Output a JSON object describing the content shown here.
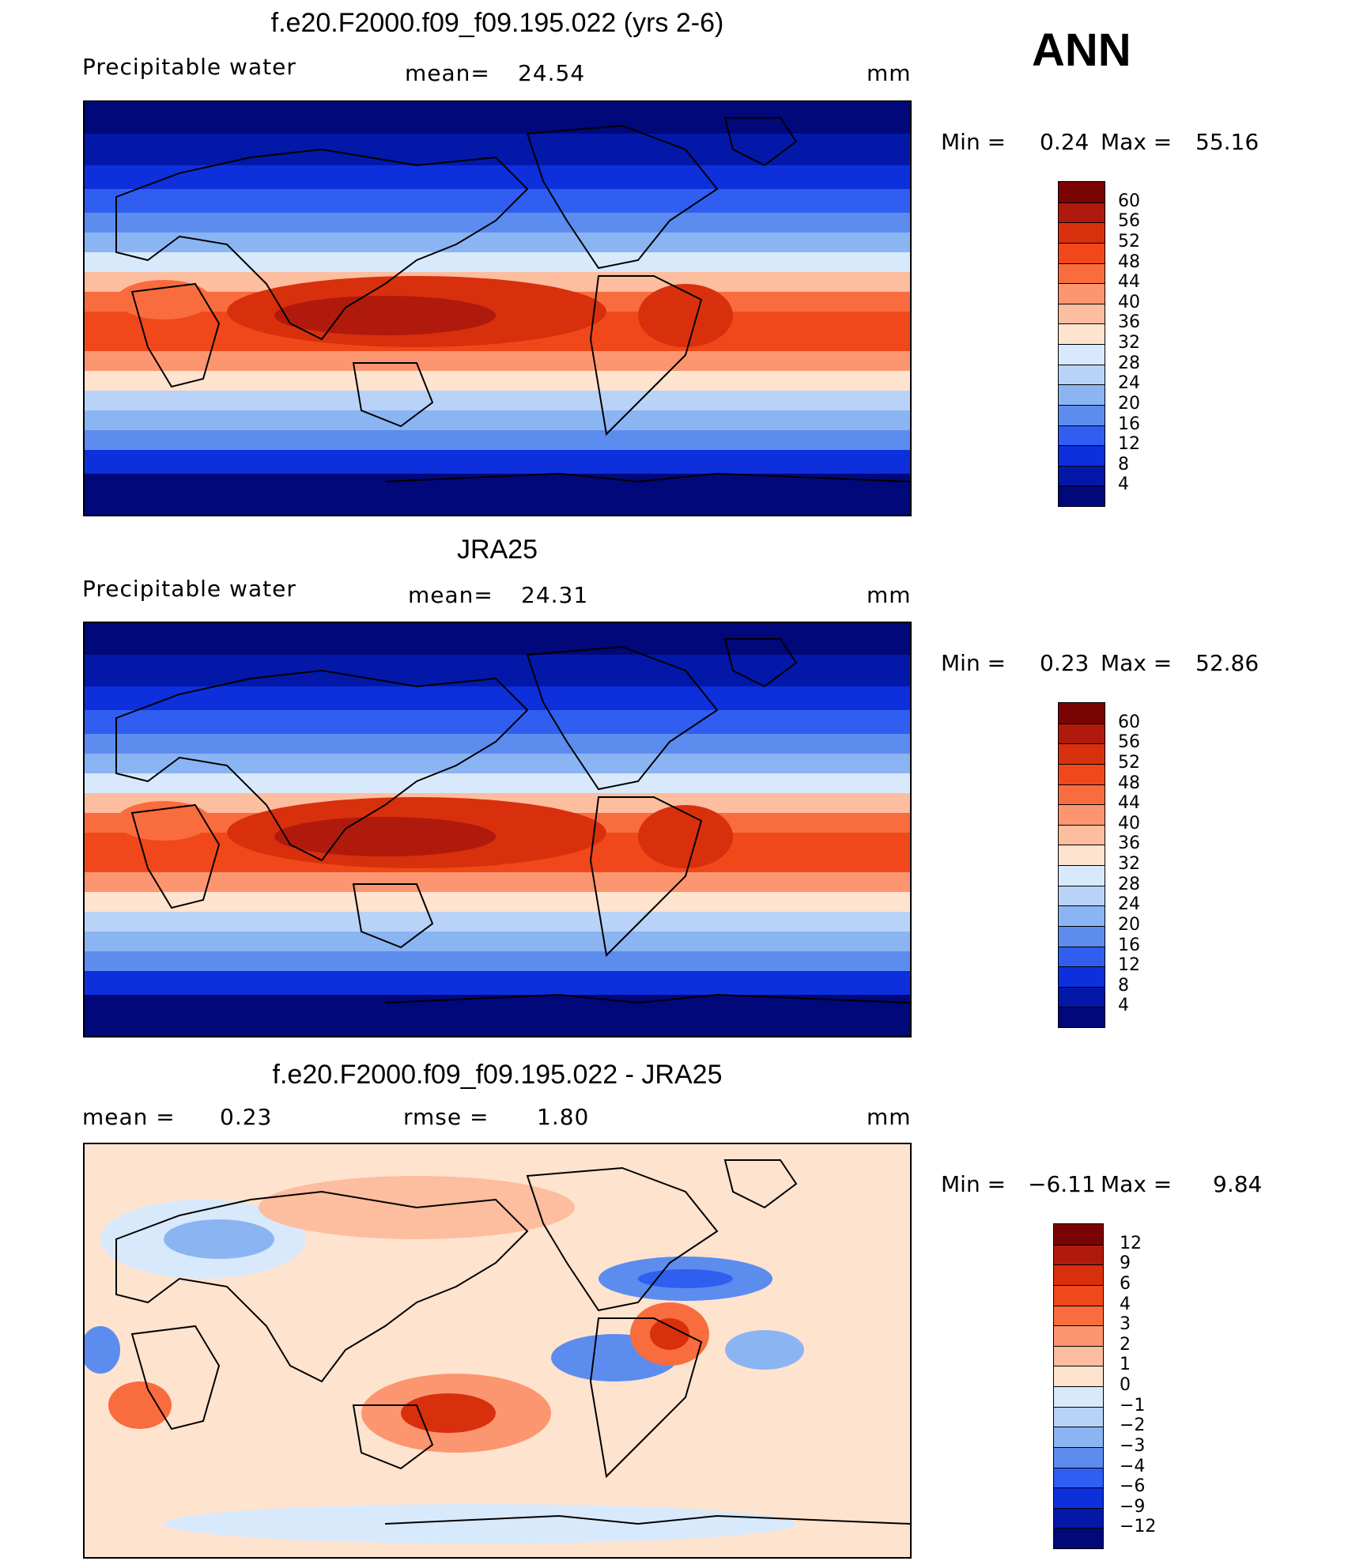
{
  "season": "ANN",
  "panels": [
    {
      "title": "f.e20.F2000.f09_f09.195.022 (yrs 2-6)",
      "left": "Precipitable  water",
      "center_label": "mean=",
      "center_value": "24.54",
      "units": "mm",
      "min_label": "Min  =",
      "min_value": "0.24",
      "max_label": "Max  =",
      "max_value": "55.16",
      "colorbar": {
        "labels": [
          "60",
          "56",
          "52",
          "48",
          "44",
          "40",
          "36",
          "32",
          "28",
          "24",
          "20",
          "16",
          "12",
          "8",
          "4"
        ],
        "colors": [
          "#7a0403",
          "#b01a0c",
          "#d8300c",
          "#f0481a",
          "#f96c3e",
          "#fc9670",
          "#fdbd9f",
          "#fee3cf",
          "#d8e9fb",
          "#b8d3f7",
          "#8bb4f3",
          "#5c8cee",
          "#2f5ef0",
          "#0d2fdc",
          "#0318a8",
          "#00087a"
        ]
      },
      "map_kind": "pw1"
    },
    {
      "title": "JRA25",
      "left": "Precipitable  water",
      "center_label": "mean=",
      "center_value": "24.31",
      "units": "mm",
      "min_label": "Min  =",
      "min_value": "0.23",
      "max_label": "Max  =",
      "max_value": "52.86",
      "colorbar": {
        "labels": [
          "60",
          "56",
          "52",
          "48",
          "44",
          "40",
          "36",
          "32",
          "28",
          "24",
          "20",
          "16",
          "12",
          "8",
          "4"
        ],
        "colors": [
          "#7a0403",
          "#b01a0c",
          "#d8300c",
          "#f0481a",
          "#f96c3e",
          "#fc9670",
          "#fdbd9f",
          "#fee3cf",
          "#d8e9fb",
          "#b8d3f7",
          "#8bb4f3",
          "#5c8cee",
          "#2f5ef0",
          "#0d2fdc",
          "#0318a8",
          "#00087a"
        ]
      },
      "map_kind": "pw2"
    },
    {
      "title": "f.e20.F2000.f09_f09.195.022 - JRA25",
      "left": "mean  =",
      "left_value": "0.23",
      "center_label": "rmse  =",
      "center_value": "1.80",
      "units": "mm",
      "min_label": "Min  =",
      "min_value": "−6.11",
      "max_label": "Max  =",
      "max_value": "9.84",
      "colorbar": {
        "labels": [
          "12",
          "9",
          "6",
          "4",
          "3",
          "2",
          "1",
          "0",
          "−1",
          "−2",
          "−3",
          "−4",
          "−6",
          "−9",
          "−12"
        ],
        "colors": [
          "#7a0403",
          "#b01a0c",
          "#d8300c",
          "#f0481a",
          "#f96c3e",
          "#fc9670",
          "#fdbd9f",
          "#fee3cf",
          "#d8e9fb",
          "#b8d3f7",
          "#8bb4f3",
          "#5c8cee",
          "#2f5ef0",
          "#0d2fdc",
          "#0318a8",
          "#00087a"
        ]
      },
      "map_kind": "diff"
    }
  ]
}
